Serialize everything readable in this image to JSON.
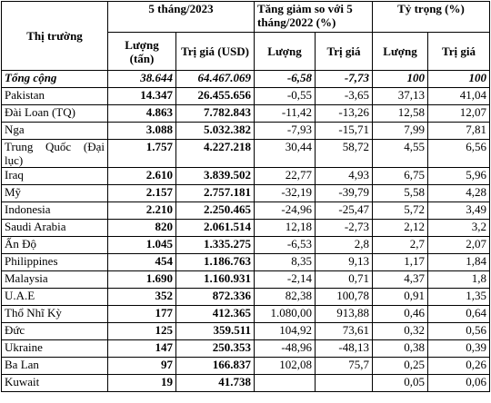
{
  "header": {
    "market": "Thị trường",
    "group1": "5 tháng/2023",
    "group2": "Tăng giảm so với 5 tháng/2022 (%)",
    "group3": "Tỷ trọng (%)",
    "sub": [
      "Lượng (tấn)",
      "Trị giá (USD)",
      "Lượng",
      "Trị giá",
      "Lượng",
      "Trị giá"
    ]
  },
  "table": {
    "rows": [
      {
        "cells": [
          "Tổng cộng",
          "38.644",
          "64.467.069",
          "-6,58",
          "-7,73",
          "100",
          "100"
        ]
      },
      {
        "cells": [
          "Pakistan",
          "14.347",
          "26.455.656",
          "-0,55",
          "-3,65",
          "37,13",
          "41,04"
        ]
      },
      {
        "cells": [
          "Đài Loan (TQ)",
          "4.863",
          "7.782.843",
          "-11,42",
          "-13,26",
          "12,58",
          "12,07"
        ]
      },
      {
        "cells": [
          "Nga",
          "3.088",
          "5.032.382",
          "-7,93",
          "-15,71",
          "7,99",
          "7,81"
        ]
      },
      {
        "cells": [
          "Trung Quốc (Đại lục)",
          "1.757",
          "4.227.218",
          "30,44",
          "58,72",
          "4,55",
          "6,56"
        ]
      },
      {
        "cells": [
          "Iraq",
          "2.610",
          "3.839.502",
          "22,77",
          "4,93",
          "6,75",
          "5,96"
        ]
      },
      {
        "cells": [
          "Mỹ",
          "2.157",
          "2.757.181",
          "-32,19",
          "-39,79",
          "5,58",
          "4,28"
        ]
      },
      {
        "cells": [
          "Indonesia",
          "2.210",
          "2.250.465",
          "-24,96",
          "-25,47",
          "5,72",
          "3,49"
        ]
      },
      {
        "cells": [
          "Saudi Arabia",
          "820",
          "2.061.514",
          "12,18",
          "-2,73",
          "2,12",
          "3,2"
        ]
      },
      {
        "cells": [
          "Ấn Độ",
          "1.045",
          "1.335.275",
          "-6,53",
          "2,8",
          "2,7",
          "2,07"
        ]
      },
      {
        "cells": [
          "Philippines",
          "454",
          "1.186.763",
          "8,35",
          "9,13",
          "1,17",
          "1,84"
        ]
      },
      {
        "cells": [
          "Malaysia",
          "1.690",
          "1.160.931",
          "-2,14",
          "0,71",
          "4,37",
          "1,8"
        ]
      },
      {
        "cells": [
          "U.A.E",
          "352",
          "872.336",
          "82,38",
          "100,78",
          "0,91",
          "1,35"
        ]
      },
      {
        "cells": [
          "Thổ Nhĩ Kỳ",
          "177",
          "412.365",
          "1.080,00",
          "913,88",
          "0,46",
          "0,64"
        ]
      },
      {
        "cells": [
          "Đức",
          "125",
          "359.511",
          "104,92",
          "73,61",
          "0,32",
          "0,56"
        ]
      },
      {
        "cells": [
          "Ukraine",
          "147",
          "250.353",
          "-48,96",
          "-48,13",
          "0,38",
          "0,39"
        ]
      },
      {
        "cells": [
          "Ba Lan",
          "97",
          "166.837",
          "102,08",
          "75,7",
          "0,25",
          "0,26"
        ]
      },
      {
        "cells": [
          "Kuwait",
          "19",
          "41.738",
          null,
          null,
          "0,05",
          "0,06"
        ]
      }
    ]
  }
}
